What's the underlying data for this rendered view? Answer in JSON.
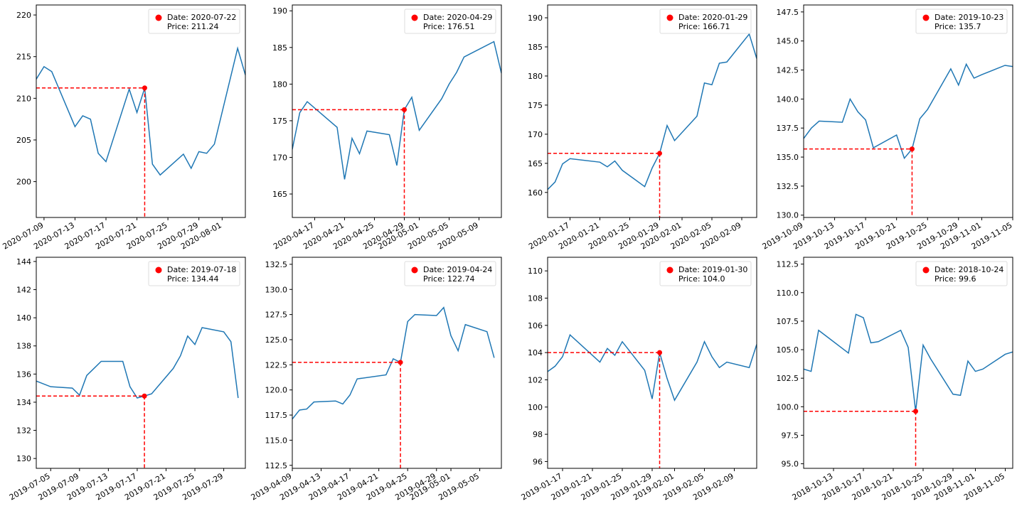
{
  "chart_data": [
    {
      "type": "line",
      "xlim": [
        "2020-07-08",
        "2020-08-04"
      ],
      "ylim": [
        195.7,
        221.2
      ],
      "yticks": [
        200,
        205,
        210,
        215,
        220
      ],
      "ytick_labels": [
        "200",
        "205",
        "210",
        "215",
        "220"
      ],
      "xticks": [
        "2020-07-09",
        "2020-07-13",
        "2020-07-17",
        "2020-07-21",
        "2020-07-25",
        "2020-07-29",
        "2020-08-01"
      ],
      "series": [
        {
          "color": "#1f77b4",
          "x": [
            "2020-07-08",
            "2020-07-09",
            "2020-07-10",
            "2020-07-13",
            "2020-07-14",
            "2020-07-15",
            "2020-07-16",
            "2020-07-17",
            "2020-07-20",
            "2020-07-21",
            "2020-07-22",
            "2020-07-23",
            "2020-07-24",
            "2020-07-27",
            "2020-07-28",
            "2020-07-29",
            "2020-07-30",
            "2020-07-31",
            "2020-08-03",
            "2020-08-04"
          ],
          "y": [
            212.3,
            213.8,
            213.2,
            206.6,
            207.9,
            207.5,
            203.4,
            202.4,
            211.1,
            208.3,
            211.24,
            202.1,
            200.8,
            203.3,
            201.6,
            203.6,
            203.4,
            204.5,
            216.0,
            212.8
          ]
        }
      ],
      "highlight": {
        "x": "2020-07-22",
        "y": 211.24,
        "color": "#ff0000"
      },
      "legend": {
        "line1": "Date: 2020-07-22",
        "line2": "Price: 211.24",
        "loc": "upper right"
      }
    },
    {
      "type": "line",
      "xlim": [
        "2020-04-14",
        "2020-05-12"
      ],
      "ylim": [
        161.8,
        190.8
      ],
      "yticks": [
        165,
        170,
        175,
        180,
        185,
        190
      ],
      "ytick_labels": [
        "165",
        "170",
        "175",
        "180",
        "185",
        "190"
      ],
      "xticks": [
        "2020-04-17",
        "2020-04-21",
        "2020-04-25",
        "2020-04-29",
        "2020-05-01",
        "2020-05-05",
        "2020-05-09"
      ],
      "series": [
        {
          "color": "#1f77b4",
          "x": [
            "2020-04-14",
            "2020-04-15",
            "2020-04-16",
            "2020-04-20",
            "2020-04-21",
            "2020-04-22",
            "2020-04-23",
            "2020-04-24",
            "2020-04-27",
            "2020-04-28",
            "2020-04-29",
            "2020-04-30",
            "2020-05-01",
            "2020-05-04",
            "2020-05-05",
            "2020-05-06",
            "2020-05-07",
            "2020-05-11",
            "2020-05-12"
          ],
          "y": [
            171.1,
            176.1,
            177.6,
            174.1,
            167.0,
            172.6,
            170.5,
            173.6,
            173.1,
            168.9,
            176.51,
            178.2,
            173.7,
            178.0,
            180.0,
            181.6,
            183.7,
            185.8,
            181.5
          ]
        }
      ],
      "highlight": {
        "x": "2020-04-29",
        "y": 176.51,
        "color": "#ff0000"
      },
      "legend": {
        "line1": "Date: 2020-04-29",
        "line2": "Price: 176.51",
        "loc": "upper right"
      }
    },
    {
      "type": "line",
      "xlim": [
        "2020-01-14",
        "2020-02-11"
      ],
      "ylim": [
        155.7,
        192.2
      ],
      "yticks": [
        160,
        165,
        170,
        175,
        180,
        185,
        190
      ],
      "ytick_labels": [
        "160",
        "165",
        "170",
        "175",
        "180",
        "185",
        "190"
      ],
      "xticks": [
        "2020-01-17",
        "2020-01-21",
        "2020-01-25",
        "2020-01-29",
        "2020-02-01",
        "2020-02-05",
        "2020-02-09"
      ],
      "series": [
        {
          "color": "#1f77b4",
          "x": [
            "2020-01-14",
            "2020-01-15",
            "2020-01-16",
            "2020-01-17",
            "2020-01-21",
            "2020-01-22",
            "2020-01-23",
            "2020-01-24",
            "2020-01-27",
            "2020-01-28",
            "2020-01-29",
            "2020-01-30",
            "2020-01-31",
            "2020-02-03",
            "2020-02-04",
            "2020-02-05",
            "2020-02-06",
            "2020-02-07",
            "2020-02-10",
            "2020-02-11"
          ],
          "y": [
            160.5,
            161.8,
            164.9,
            165.8,
            165.2,
            164.4,
            165.4,
            163.8,
            161.0,
            164.2,
            166.71,
            171.5,
            168.9,
            173.1,
            178.8,
            178.5,
            182.2,
            182.4,
            187.2,
            183.0
          ]
        }
      ],
      "highlight": {
        "x": "2020-01-29",
        "y": 166.71,
        "color": "#ff0000"
      },
      "legend": {
        "line1": "Date: 2020-01-29",
        "line2": "Price: 166.71",
        "loc": "upper right"
      }
    },
    {
      "type": "line",
      "xlim": [
        "2019-10-09",
        "2019-11-05"
      ],
      "ylim": [
        129.8,
        148.1
      ],
      "yticks": [
        130.0,
        132.5,
        135.0,
        137.5,
        140.0,
        142.5,
        145.0,
        147.5
      ],
      "ytick_labels": [
        "130.0",
        "132.5",
        "135.0",
        "137.5",
        "140.0",
        "142.5",
        "145.0",
        "147.5"
      ],
      "xticks": [
        "2019-10-09",
        "2019-10-13",
        "2019-10-17",
        "2019-10-21",
        "2019-10-25",
        "2019-10-29",
        "2019-11-01",
        "2019-11-05"
      ],
      "series": [
        {
          "color": "#1f77b4",
          "x": [
            "2019-10-09",
            "2019-10-10",
            "2019-10-11",
            "2019-10-14",
            "2019-10-15",
            "2019-10-16",
            "2019-10-17",
            "2019-10-18",
            "2019-10-21",
            "2019-10-22",
            "2019-10-23",
            "2019-10-24",
            "2019-10-25",
            "2019-10-28",
            "2019-10-29",
            "2019-10-30",
            "2019-10-31",
            "2019-11-01",
            "2019-11-04",
            "2019-11-05"
          ],
          "y": [
            136.6,
            137.5,
            138.1,
            138.0,
            140.0,
            138.9,
            138.2,
            135.8,
            136.9,
            134.9,
            135.7,
            138.3,
            139.1,
            142.6,
            141.2,
            143.0,
            141.8,
            142.1,
            142.9,
            142.8
          ]
        }
      ],
      "highlight": {
        "x": "2019-10-23",
        "y": 135.7,
        "color": "#ff0000"
      },
      "legend": {
        "line1": "Date: 2019-10-23",
        "line2": "Price: 135.7",
        "loc": "upper right"
      }
    },
    {
      "type": "line",
      "xlim": [
        "2019-07-03",
        "2019-08-01"
      ],
      "ylim": [
        129.3,
        144.3
      ],
      "yticks": [
        130,
        132,
        134,
        136,
        138,
        140,
        142,
        144
      ],
      "ytick_labels": [
        "130",
        "132",
        "134",
        "136",
        "138",
        "140",
        "142",
        "144"
      ],
      "xticks": [
        "2019-07-05",
        "2019-07-09",
        "2019-07-13",
        "2019-07-17",
        "2019-07-21",
        "2019-07-25",
        "2019-07-29"
      ],
      "series": [
        {
          "color": "#1f77b4",
          "x": [
            "2019-07-03",
            "2019-07-05",
            "2019-07-08",
            "2019-07-09",
            "2019-07-10",
            "2019-07-11",
            "2019-07-12",
            "2019-07-15",
            "2019-07-16",
            "2019-07-17",
            "2019-07-18",
            "2019-07-19",
            "2019-07-22",
            "2019-07-23",
            "2019-07-24",
            "2019-07-25",
            "2019-07-26",
            "2019-07-29",
            "2019-07-30",
            "2019-07-31"
          ],
          "y": [
            135.5,
            135.1,
            135.0,
            134.5,
            135.9,
            136.4,
            136.9,
            136.9,
            135.1,
            134.3,
            134.44,
            134.6,
            136.4,
            137.3,
            138.7,
            138.1,
            139.3,
            139.0,
            138.3,
            134.3
          ]
        }
      ],
      "highlight": {
        "x": "2019-07-18",
        "y": 134.44,
        "color": "#ff0000"
      },
      "legend": {
        "line1": "Date: 2019-07-18",
        "line2": "Price: 134.44",
        "loc": "upper right"
      }
    },
    {
      "type": "line",
      "xlim": [
        "2019-04-09",
        "2019-05-08"
      ],
      "ylim": [
        112.2,
        133.2
      ],
      "yticks": [
        112.5,
        115.0,
        117.5,
        120.0,
        122.5,
        125.0,
        127.5,
        130.0,
        132.5
      ],
      "ytick_labels": [
        "112.5",
        "115.0",
        "117.5",
        "120.0",
        "122.5",
        "125.0",
        "127.5",
        "130.0",
        "132.5"
      ],
      "xticks": [
        "2019-04-09",
        "2019-04-13",
        "2019-04-17",
        "2019-04-21",
        "2019-04-25",
        "2019-04-29",
        "2019-05-01",
        "2019-05-05"
      ],
      "series": [
        {
          "color": "#1f77b4",
          "x": [
            "2019-04-09",
            "2019-04-10",
            "2019-04-11",
            "2019-04-12",
            "2019-04-15",
            "2019-04-16",
            "2019-04-17",
            "2019-04-18",
            "2019-04-22",
            "2019-04-23",
            "2019-04-24",
            "2019-04-25",
            "2019-04-26",
            "2019-04-29",
            "2019-04-30",
            "2019-05-01",
            "2019-05-02",
            "2019-05-03",
            "2019-05-06",
            "2019-05-07"
          ],
          "y": [
            117.1,
            118.0,
            118.1,
            118.8,
            118.9,
            118.6,
            119.5,
            121.1,
            121.5,
            123.1,
            122.74,
            126.8,
            127.5,
            127.4,
            128.2,
            125.4,
            123.9,
            126.5,
            125.8,
            123.2
          ]
        }
      ],
      "highlight": {
        "x": "2019-04-24",
        "y": 122.74,
        "color": "#ff0000"
      },
      "legend": {
        "line1": "Date: 2019-04-24",
        "line2": "Price: 122.74",
        "loc": "upper right"
      }
    },
    {
      "type": "line",
      "xlim": [
        "2019-01-15",
        "2019-02-12"
      ],
      "ylim": [
        95.5,
        111.0
      ],
      "yticks": [
        96,
        98,
        100,
        102,
        104,
        106,
        108,
        110
      ],
      "ytick_labels": [
        "96",
        "98",
        "100",
        "102",
        "104",
        "106",
        "108",
        "110"
      ],
      "xticks": [
        "2019-01-17",
        "2019-01-21",
        "2019-01-25",
        "2019-01-29",
        "2019-02-01",
        "2019-02-05",
        "2019-02-09"
      ],
      "series": [
        {
          "color": "#1f77b4",
          "x": [
            "2019-01-15",
            "2019-01-16",
            "2019-01-17",
            "2019-01-18",
            "2019-01-22",
            "2019-01-23",
            "2019-01-24",
            "2019-01-25",
            "2019-01-28",
            "2019-01-29",
            "2019-01-30",
            "2019-01-31",
            "2019-02-01",
            "2019-02-04",
            "2019-02-05",
            "2019-02-06",
            "2019-02-07",
            "2019-02-08",
            "2019-02-11",
            "2019-02-12"
          ],
          "y": [
            102.6,
            103.0,
            103.7,
            105.3,
            103.3,
            104.3,
            103.8,
            104.8,
            102.7,
            100.6,
            104.0,
            102.1,
            100.5,
            103.3,
            104.8,
            103.7,
            102.9,
            103.3,
            102.9,
            104.6
          ]
        }
      ],
      "highlight": {
        "x": "2019-01-30",
        "y": 104.0,
        "color": "#ff0000"
      },
      "legend": {
        "line1": "Date: 2019-01-30",
        "line2": "Price: 104.0",
        "loc": "upper right"
      }
    },
    {
      "type": "line",
      "xlim": [
        "2018-10-09",
        "2018-11-06"
      ],
      "ylim": [
        94.6,
        113.1
      ],
      "yticks": [
        95.0,
        97.5,
        100.0,
        102.5,
        105.0,
        107.5,
        110.0,
        112.5
      ],
      "ytick_labels": [
        "95.0",
        "97.5",
        "100.0",
        "102.5",
        "105.0",
        "107.5",
        "110.0",
        "112.5"
      ],
      "xticks": [
        "2018-10-13",
        "2018-10-17",
        "2018-10-21",
        "2018-10-25",
        "2018-10-29",
        "2018-11-01",
        "2018-11-05"
      ],
      "series": [
        {
          "color": "#1f77b4",
          "x": [
            "2018-10-09",
            "2018-10-10",
            "2018-10-11",
            "2018-10-12",
            "2018-10-15",
            "2018-10-16",
            "2018-10-17",
            "2018-10-18",
            "2018-10-19",
            "2018-10-22",
            "2018-10-23",
            "2018-10-24",
            "2018-10-25",
            "2018-10-26",
            "2018-10-29",
            "2018-10-30",
            "2018-10-31",
            "2018-11-01",
            "2018-11-02",
            "2018-11-05",
            "2018-11-06"
          ],
          "y": [
            103.3,
            103.1,
            106.7,
            106.2,
            104.7,
            108.1,
            107.8,
            105.6,
            105.7,
            106.7,
            105.2,
            99.6,
            105.4,
            104.2,
            101.1,
            101.0,
            104.0,
            103.1,
            103.3,
            104.6,
            104.8
          ]
        }
      ],
      "highlight": {
        "x": "2018-10-24",
        "y": 99.6,
        "color": "#ff0000"
      },
      "legend": {
        "line1": "Date: 2018-10-24",
        "line2": "Price: 99.6",
        "loc": "upper right"
      }
    }
  ]
}
